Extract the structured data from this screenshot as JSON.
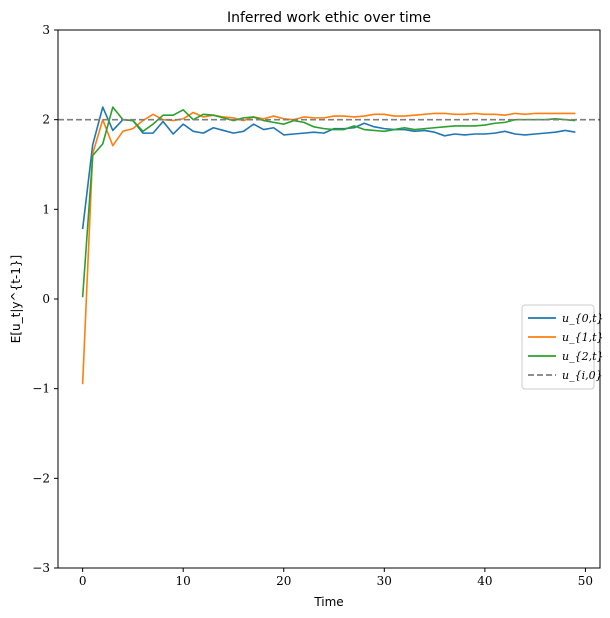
{
  "chart_data": {
    "type": "line",
    "title": "Inferred work ethic over time",
    "xlabel": "Time",
    "ylabel": "E[u_t|y^{t-1}]",
    "xlim": [
      -2.45,
      51.45
    ],
    "ylim": [
      -3,
      3
    ],
    "xticks": [
      0,
      10,
      20,
      30,
      40,
      50
    ],
    "yticks": [
      -3,
      -2,
      -1,
      0,
      1,
      2,
      3
    ],
    "ytick_labels": [
      "−3",
      "−2",
      "−1",
      "0",
      "1",
      "2",
      "3"
    ],
    "grid": false,
    "legend_position": "center-right",
    "x": [
      0,
      1,
      2,
      3,
      4,
      5,
      6,
      7,
      8,
      9,
      10,
      11,
      12,
      13,
      14,
      15,
      16,
      17,
      18,
      19,
      20,
      21,
      22,
      23,
      24,
      25,
      26,
      27,
      28,
      29,
      30,
      31,
      32,
      33,
      34,
      35,
      36,
      37,
      38,
      39,
      40,
      41,
      42,
      43,
      44,
      45,
      46,
      47,
      48,
      49
    ],
    "series": [
      {
        "name": "u_{0,t}",
        "color": "#1f77b4",
        "style": "solid",
        "values": [
          0.78,
          1.72,
          2.14,
          1.88,
          2.0,
          1.99,
          1.85,
          1.85,
          1.98,
          1.84,
          1.95,
          1.87,
          1.85,
          1.91,
          1.88,
          1.85,
          1.87,
          1.95,
          1.89,
          1.91,
          1.83,
          1.84,
          1.85,
          1.86,
          1.85,
          1.9,
          1.9,
          1.91,
          1.96,
          1.92,
          1.9,
          1.89,
          1.89,
          1.87,
          1.88,
          1.86,
          1.82,
          1.84,
          1.83,
          1.84,
          1.84,
          1.85,
          1.87,
          1.84,
          1.83,
          1.84,
          1.85,
          1.86,
          1.88,
          1.86
        ]
      },
      {
        "name": "u_{1,t}",
        "color": "#ff7f0e",
        "style": "solid",
        "values": [
          -0.95,
          1.62,
          2.0,
          1.71,
          1.87,
          1.9,
          1.99,
          2.06,
          2.0,
          1.99,
          2.01,
          2.08,
          2.03,
          2.05,
          2.03,
          2.02,
          1.99,
          2.03,
          2.01,
          2.04,
          2.01,
          2.0,
          2.03,
          2.02,
          2.02,
          2.04,
          2.04,
          2.03,
          2.04,
          2.06,
          2.06,
          2.04,
          2.04,
          2.05,
          2.06,
          2.07,
          2.07,
          2.06,
          2.06,
          2.07,
          2.06,
          2.06,
          2.05,
          2.07,
          2.06,
          2.07,
          2.07,
          2.07,
          2.07,
          2.07
        ]
      },
      {
        "name": "u_{2,t}",
        "color": "#2ca02c",
        "style": "solid",
        "values": [
          0.02,
          1.6,
          1.73,
          2.14,
          2.0,
          1.99,
          1.87,
          1.95,
          2.05,
          2.05,
          2.11,
          2.0,
          2.06,
          2.05,
          2.02,
          1.99,
          2.02,
          2.03,
          1.99,
          1.97,
          1.95,
          1.99,
          1.97,
          1.92,
          1.9,
          1.89,
          1.89,
          1.93,
          1.89,
          1.88,
          1.87,
          1.89,
          1.91,
          1.89,
          1.9,
          1.91,
          1.92,
          1.93,
          1.93,
          1.93,
          1.94,
          1.96,
          1.97,
          2.0,
          2.0,
          2.0,
          2.0,
          2.01,
          2.0,
          1.99
        ]
      },
      {
        "name": "u_{i,0}",
        "color": "#7f7f7f",
        "style": "dashed",
        "values": [
          2,
          2,
          2,
          2,
          2,
          2,
          2,
          2,
          2,
          2,
          2,
          2,
          2,
          2,
          2,
          2,
          2,
          2,
          2,
          2,
          2,
          2,
          2,
          2,
          2,
          2,
          2,
          2,
          2,
          2,
          2,
          2,
          2,
          2,
          2,
          2,
          2,
          2,
          2,
          2,
          2,
          2,
          2,
          2,
          2,
          2,
          2,
          2,
          2,
          2
        ]
      }
    ]
  }
}
